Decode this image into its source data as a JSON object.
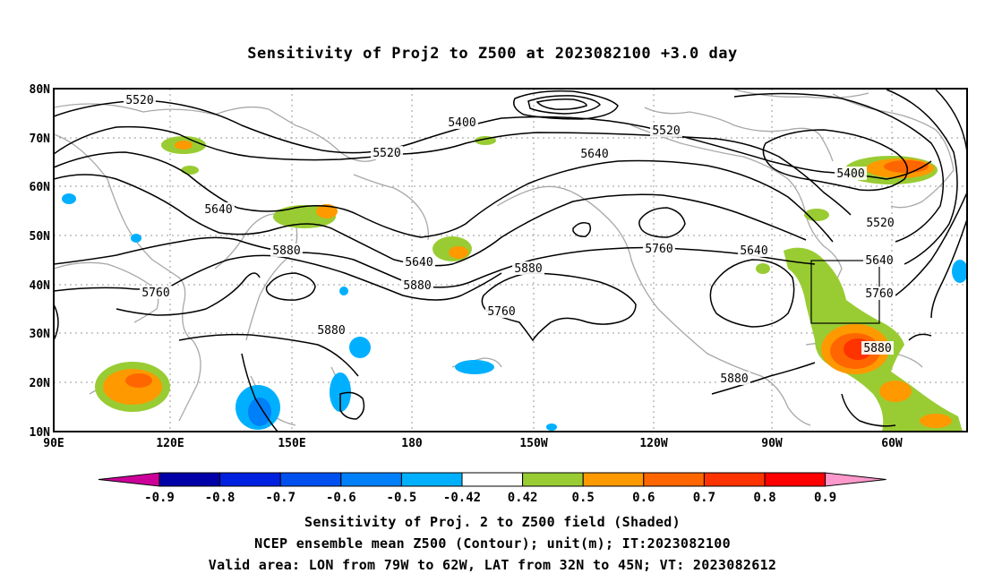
{
  "title": "Sensitivity of Proj2 to Z500 at 2023082100 +3.0 day",
  "lat_labels": [
    "80N",
    "70N",
    "60N",
    "50N",
    "40N",
    "30N",
    "20N",
    "10N"
  ],
  "lon_labels": [
    "90E",
    "120E",
    "150E",
    "180",
    "150W",
    "120W",
    "90W",
    "60W"
  ],
  "contour_labels": [
    {
      "text": "5520"
    },
    {
      "text": "5400"
    },
    {
      "text": "5520"
    },
    {
      "text": "5520"
    },
    {
      "text": "5640"
    },
    {
      "text": "5640"
    },
    {
      "text": "5400"
    },
    {
      "text": "5520"
    },
    {
      "text": "5640"
    },
    {
      "text": "5880"
    },
    {
      "text": "5640"
    },
    {
      "text": "5880"
    },
    {
      "text": "5760"
    },
    {
      "text": "5760"
    },
    {
      "text": "5880"
    },
    {
      "text": "5640"
    },
    {
      "text": "5760"
    },
    {
      "text": "5760"
    },
    {
      "text": "5880"
    },
    {
      "text": "5880"
    },
    {
      "text": "5880"
    }
  ],
  "colorbar": {
    "labels": [
      "-0.9",
      "-0.8",
      "-0.7",
      "-0.6",
      "-0.5",
      "-0.42",
      "0.42",
      "0.5",
      "0.6",
      "0.7",
      "0.8",
      "0.9"
    ],
    "colors": [
      "#0000a8",
      "#0020e0",
      "#0050f0",
      "#0080f8",
      "#00b0ff",
      "#ffffff",
      "#99cc33",
      "#ff9900",
      "#ff6600",
      "#ff3300",
      "#ff0000"
    ],
    "low_extend_color": "#cc0099",
    "high_extend_color": "#ff99cc"
  },
  "captions": [
    "Sensitivity of Proj. 2 to Z500 field (Shaded)",
    "NCEP ensemble mean Z500 (Contour); unit(m); IT:2023082100",
    "Valid area: LON from 79W to 62W, LAT from 32N to 45N; VT: 2023082612"
  ]
}
